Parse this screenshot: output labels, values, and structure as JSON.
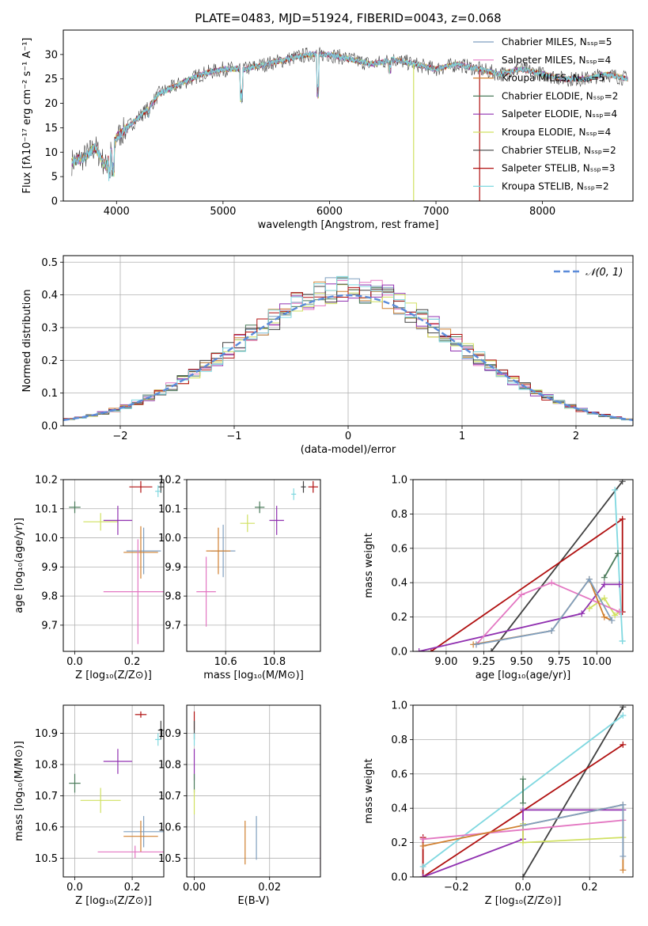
{
  "figure_title": "PLATE=0483, MJD=51924, FIBERID=0043, z=0.068",
  "colors": {
    "Chabrier MILES": "#7f9fbf",
    "Salpeter MILES": "#e377c2",
    "Kroupa MILES": "#d08030",
    "Chabrier ELODIE": "#4a7a5a",
    "Salpeter ELODIE": "#9030b0",
    "Kroupa ELODIE": "#d0e060",
    "Chabrier STELIB": "#404040",
    "Salpeter STELIB": "#b01010",
    "Kroupa STELIB": "#80d8e0",
    "normal": "#5b8bd9",
    "grid": "#b0b0b0"
  },
  "chart_data": [
    {
      "id": "spectrum",
      "type": "line",
      "xlabel": "wavelength [Angstrom, rest frame]",
      "ylabel": "Flux [fλ10⁻¹⁷ erg cm⁻² s⁻¹ A⁻¹]",
      "xlim": [
        3500,
        8850
      ],
      "ylim": [
        0,
        35
      ],
      "xticks": [
        4000,
        5000,
        6000,
        7000,
        8000
      ],
      "yticks": [
        0,
        5,
        10,
        15,
        20,
        25,
        30
      ],
      "grid": false,
      "legend": "top-right",
      "legend_entries": [
        "Chabrier MILES, Nₛₛₚ=5",
        "Salpeter MILES, Nₛₛₚ=4",
        "Kroupa MILES, Nₛₛₚ=5",
        "Chabrier ELODIE, Nₛₛₚ=2",
        "Salpeter ELODIE, Nₛₛₚ=4",
        "Kroupa ELODIE, Nₛₛₚ=4",
        "Chabrier STELIB, Nₛₛₚ=2",
        "Salpeter STELIB, Nₛₛₚ=3",
        "Kroupa STELIB, Nₛₛₚ=2"
      ],
      "continuum": {
        "x": [
          3580,
          3700,
          3800,
          3900,
          4000,
          4100,
          4300,
          4400,
          4600,
          4800,
          5000,
          5200,
          5400,
          5600,
          5800,
          6000,
          6200,
          6400,
          6600,
          6800,
          7000,
          7200,
          7400,
          7600,
          7800,
          8000,
          8200,
          8400,
          8600,
          8800
        ],
        "y": [
          8,
          9,
          11,
          7,
          13,
          15,
          19,
          22,
          24,
          26,
          27,
          27,
          28,
          29,
          30,
          30,
          29,
          28,
          29,
          28,
          27,
          28,
          27,
          26,
          27,
          26,
          25,
          25,
          26,
          25
        ]
      },
      "absorption_lines": [
        {
          "x": 3934,
          "y": 4
        },
        {
          "x": 3969,
          "y": 5
        },
        {
          "x": 4300,
          "y": 17
        },
        {
          "x": 5175,
          "y": 20
        },
        {
          "x": 5890,
          "y": 21
        },
        {
          "x": 6563,
          "y": 26
        }
      ],
      "spikes": [
        {
          "x": 6790,
          "y": 0,
          "series": "Kroupa ELODIE"
        },
        {
          "x": 7410,
          "y": 0,
          "series": "Salpeter STELIB"
        }
      ]
    },
    {
      "id": "residuals",
      "type": "step",
      "xlabel": "(data-model)/error",
      "ylabel": "Normed distribution",
      "xlim": [
        -2.5,
        2.5
      ],
      "ylim": [
        0,
        0.52
      ],
      "xticks": [
        -2,
        -1,
        0,
        1,
        2
      ],
      "yticks": [
        0.0,
        0.1,
        0.2,
        0.3,
        0.4,
        0.5
      ],
      "xtick_labels": [
        "−2",
        "−1",
        "0",
        "1",
        "2"
      ],
      "grid": true,
      "legend": "top-right",
      "legend_entries": [
        "𝒩(0, 1)"
      ],
      "bin_width": 0.1
    },
    {
      "id": "age_vs_Z",
      "type": "errorbar",
      "xlabel": "Z [log₁₀(Z/Z⊙)]",
      "ylabel": "age  [log₁₀(age/yr)]",
      "xlim": [
        -0.04,
        0.31
      ],
      "ylim": [
        9.61,
        10.2
      ],
      "xticks": [
        0.0,
        0.2
      ],
      "yticks": [
        9.7,
        9.8,
        9.9,
        10.0,
        10.1,
        10.2
      ],
      "grid": true,
      "points": [
        {
          "series": "Chabrier ELODIE",
          "x": 0.0,
          "y": 10.105,
          "xerr": 0.02,
          "yerr": 0.02
        },
        {
          "series": "Kroupa ELODIE",
          "x": 0.09,
          "y": 10.055,
          "xerr": 0.06,
          "yerr": 0.03
        },
        {
          "series": "Salpeter ELODIE",
          "x": 0.15,
          "y": 10.06,
          "xerr": 0.05,
          "yerr": 0.05
        },
        {
          "series": "Salpeter STELIB",
          "x": 0.23,
          "y": 10.175,
          "xerr": 0.04,
          "yerr": 0.02
        },
        {
          "series": "Chabrier STELIB",
          "x": 0.3,
          "y": 10.175,
          "xerr": 0.01,
          "yerr": 0.02
        },
        {
          "series": "Kroupa STELIB",
          "x": 0.29,
          "y": 10.16,
          "xerr": 0.01,
          "yerr": 0.02
        },
        {
          "series": "Chabrier MILES",
          "x": 0.24,
          "y": 9.955,
          "xerr": 0.06,
          "yerr": 0.08
        },
        {
          "series": "Kroupa MILES",
          "x": 0.23,
          "y": 9.95,
          "xerr": 0.06,
          "yerr": 0.09
        },
        {
          "series": "Salpeter MILES",
          "x": 0.22,
          "y": 9.815,
          "xerr": 0.12,
          "yerr": 0.18
        }
      ]
    },
    {
      "id": "age_vs_mass",
      "type": "errorbar",
      "xlabel": "mass [log₁₀(M/M⊙)]",
      "ylabel": "",
      "xlim": [
        10.44,
        10.99
      ],
      "ylim": [
        9.61,
        10.2
      ],
      "xticks": [
        10.6,
        10.8
      ],
      "yticks": [
        9.7,
        9.8,
        9.9,
        10.0,
        10.1,
        10.2
      ],
      "grid": true,
      "points": [
        {
          "series": "Chabrier ELODIE",
          "x": 10.74,
          "y": 10.105,
          "xerr": 0.02,
          "yerr": 0.02
        },
        {
          "series": "Kroupa ELODIE",
          "x": 10.69,
          "y": 10.05,
          "xerr": 0.03,
          "yerr": 0.03
        },
        {
          "series": "Salpeter ELODIE",
          "x": 10.81,
          "y": 10.06,
          "xerr": 0.03,
          "yerr": 0.05
        },
        {
          "series": "Salpeter STELIB",
          "x": 10.96,
          "y": 10.175,
          "xerr": 0.02,
          "yerr": 0.02
        },
        {
          "series": "Chabrier STELIB",
          "x": 10.92,
          "y": 10.175,
          "xerr": 0.01,
          "yerr": 0.02
        },
        {
          "series": "Kroupa STELIB",
          "x": 10.88,
          "y": 10.15,
          "xerr": 0.01,
          "yerr": 0.02
        },
        {
          "series": "Chabrier MILES",
          "x": 10.59,
          "y": 9.955,
          "xerr": 0.05,
          "yerr": 0.09
        },
        {
          "series": "Kroupa MILES",
          "x": 10.57,
          "y": 9.955,
          "xerr": 0.05,
          "yerr": 0.08
        },
        {
          "series": "Salpeter MILES",
          "x": 10.52,
          "y": 9.815,
          "xerr": 0.04,
          "yerr": 0.12
        }
      ]
    },
    {
      "id": "weight_vs_age",
      "type": "line",
      "xlabel": "age  [log₁₀(age/yr)]",
      "ylabel": "mass weight",
      "xlim": [
        8.78,
        10.24
      ],
      "ylim": [
        0,
        1
      ],
      "xticks": [
        9.0,
        9.25,
        9.5,
        9.75,
        10.0
      ],
      "yticks": [
        0.0,
        0.2,
        0.4,
        0.6,
        0.8,
        1.0
      ],
      "grid": true,
      "series": [
        {
          "series": "Chabrier STELIB",
          "x": [
            9.3,
            10.17
          ],
          "y": [
            0.0,
            0.99
          ]
        },
        {
          "series": "Salpeter STELIB",
          "x": [
            8.9,
            10.17,
            10.17
          ],
          "y": [
            0.0,
            0.77,
            0.23
          ]
        },
        {
          "series": "Kroupa STELIB",
          "x": [
            10.12,
            10.17,
            10.17
          ],
          "y": [
            0.94,
            0.06,
            0.06
          ]
        },
        {
          "series": "Chabrier ELODIE",
          "x": [
            10.05,
            10.14,
            10.14
          ],
          "y": [
            0.43,
            0.57,
            0.57
          ]
        },
        {
          "series": "Salpeter ELODIE",
          "x": [
            8.82,
            9.9,
            10.05,
            10.15
          ],
          "y": [
            0.0,
            0.22,
            0.39,
            0.39
          ]
        },
        {
          "series": "Kroupa ELODIE",
          "x": [
            9.95,
            10.05,
            10.12,
            10.15
          ],
          "y": [
            0.25,
            0.31,
            0.21,
            0.23
          ]
        },
        {
          "series": "Salpeter MILES",
          "x": [
            9.2,
            9.5,
            9.7,
            10.15
          ],
          "y": [
            0.04,
            0.33,
            0.4,
            0.23
          ]
        },
        {
          "series": "Kroupa MILES",
          "x": [
            9.18,
            9.7,
            9.95,
            10.05,
            10.1
          ],
          "y": [
            0.04,
            0.12,
            0.42,
            0.2,
            0.18
          ]
        },
        {
          "series": "Chabrier MILES",
          "x": [
            9.2,
            9.7,
            9.95,
            10.1
          ],
          "y": [
            0.04,
            0.12,
            0.42,
            0.18
          ]
        }
      ]
    },
    {
      "id": "mass_vs_Z",
      "type": "errorbar",
      "xlabel": "Z [log₁₀(Z/Z⊙)]",
      "ylabel": "mass [log₁₀(M/M⊙)]",
      "xlim": [
        -0.04,
        0.31
      ],
      "ylim": [
        10.44,
        10.99
      ],
      "xticks": [
        0.0,
        0.2
      ],
      "yticks": [
        10.5,
        10.6,
        10.7,
        10.8,
        10.9
      ],
      "grid": true,
      "points": [
        {
          "series": "Salpeter STELIB",
          "x": 0.23,
          "y": 10.96,
          "xerr": 0.02,
          "yerr": 0.01
        },
        {
          "series": "Chabrier STELIB",
          "x": 0.3,
          "y": 10.91,
          "xerr": 0.01,
          "yerr": 0.03
        },
        {
          "series": "Kroupa STELIB",
          "x": 0.29,
          "y": 10.88,
          "xerr": 0.01,
          "yerr": 0.02
        },
        {
          "series": "Salpeter ELODIE",
          "x": 0.15,
          "y": 10.81,
          "xerr": 0.05,
          "yerr": 0.04
        },
        {
          "series": "Chabrier ELODIE",
          "x": 0.0,
          "y": 10.74,
          "xerr": 0.02,
          "yerr": 0.03
        },
        {
          "series": "Kroupa ELODIE",
          "x": 0.09,
          "y": 10.685,
          "xerr": 0.07,
          "yerr": 0.04
        },
        {
          "series": "Chabrier MILES",
          "x": 0.24,
          "y": 10.585,
          "xerr": 0.07,
          "yerr": 0.05
        },
        {
          "series": "Kroupa MILES",
          "x": 0.23,
          "y": 10.57,
          "xerr": 0.06,
          "yerr": 0.05
        },
        {
          "series": "Salpeter MILES",
          "x": 0.21,
          "y": 10.52,
          "xerr": 0.13,
          "yerr": 0.02
        }
      ]
    },
    {
      "id": "mass_vs_EBV",
      "type": "errorbar",
      "xlabel": "E(B-V)",
      "ylabel": "",
      "xlim": [
        -0.002,
        0.0335
      ],
      "ylim": [
        10.44,
        10.99
      ],
      "xticks": [
        0.0,
        0.02
      ],
      "yticks": [
        10.5,
        10.6,
        10.7,
        10.8,
        10.9
      ],
      "xtick_labels": [
        "0.00",
        "0.02"
      ],
      "grid": true,
      "points": [
        {
          "series": "Salpeter STELIB",
          "x": 0.0,
          "y": 10.94,
          "xerr": 0,
          "yerr": 0.03
        },
        {
          "series": "Chabrier STELIB",
          "x": 0.0,
          "y": 10.91,
          "xerr": 0,
          "yerr": 0.03
        },
        {
          "series": "Kroupa STELIB",
          "x": 0.0,
          "y": 10.88,
          "xerr": 0,
          "yerr": 0.02
        },
        {
          "series": "Salpeter ELODIE",
          "x": 0.0,
          "y": 10.8,
          "xerr": 0,
          "yerr": 0.05
        },
        {
          "series": "Chabrier ELODIE",
          "x": 0.0,
          "y": 10.74,
          "xerr": 0,
          "yerr": 0.03
        },
        {
          "series": "Kroupa ELODIE",
          "x": 0.0,
          "y": 10.68,
          "xerr": 0,
          "yerr": 0.04
        },
        {
          "series": "Chabrier MILES",
          "x": 0.0165,
          "y": 10.565,
          "xerr": 0,
          "yerr": 0.07
        },
        {
          "series": "Kroupa MILES",
          "x": 0.0135,
          "y": 10.55,
          "xerr": 0,
          "yerr": 0.07
        },
        {
          "series": "Salpeter MILES",
          "x": 0.0335,
          "y": 10.53,
          "xerr": 0,
          "yerr": 0.07
        }
      ]
    },
    {
      "id": "weight_vs_Z",
      "type": "line",
      "xlabel": "Z [log₁₀(Z/Z⊙)]",
      "ylabel": "mass weight",
      "xlim": [
        -0.33,
        0.33
      ],
      "ylim": [
        0,
        1
      ],
      "xticks": [
        -0.2,
        0.0,
        0.2
      ],
      "yticks": [
        0.0,
        0.2,
        0.4,
        0.6,
        0.8,
        1.0
      ],
      "xtick_labels": [
        "−0.2",
        "0.0",
        "0.2"
      ],
      "grid": true,
      "series": [
        {
          "series": "Chabrier STELIB",
          "x": [
            0.0,
            0.3
          ],
          "y": [
            0.0,
            0.99
          ]
        },
        {
          "series": "Salpeter STELIB",
          "x": [
            -0.3,
            -0.3,
            0.3
          ],
          "y": [
            0.23,
            0.0,
            0.77
          ]
        },
        {
          "series": "Kroupa STELIB",
          "x": [
            -0.3,
            0.3
          ],
          "y": [
            0.06,
            0.94
          ]
        },
        {
          "series": "Chabrier ELODIE",
          "x": [
            0.0,
            0.0
          ],
          "y": [
            0.43,
            0.57
          ]
        },
        {
          "series": "Salpeter ELODIE",
          "x": [
            -0.3,
            0.0,
            0.0,
            0.3
          ],
          "y": [
            0.0,
            0.22,
            0.39,
            0.39
          ]
        },
        {
          "series": "Kroupa ELODIE",
          "x": [
            0.0,
            0.0,
            0.3
          ],
          "y": [
            0.31,
            0.2,
            0.23
          ]
        },
        {
          "series": "Salpeter MILES",
          "x": [
            -0.3,
            0.3
          ],
          "y": [
            0.22,
            0.33
          ]
        },
        {
          "series": "Kroupa MILES",
          "x": [
            -0.3,
            0.3,
            0.3
          ],
          "y": [
            0.18,
            0.42,
            0.04
          ]
        },
        {
          "series": "Chabrier MILES",
          "x": [
            0.0,
            0.3,
            0.3
          ],
          "y": [
            0.3,
            0.42,
            0.12
          ]
        }
      ]
    }
  ]
}
